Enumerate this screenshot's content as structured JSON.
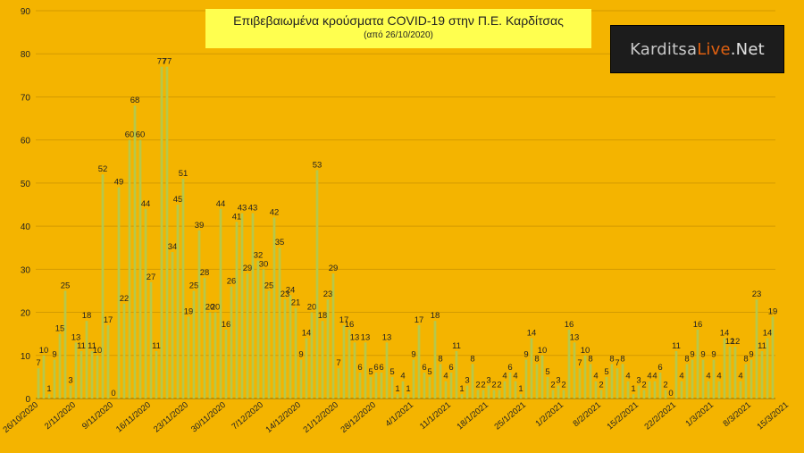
{
  "title": "Επιβεβαιωμένα κρούσματα COVID-19 στην Π.Ε. Καρδίτσας",
  "subtitle": "(από 26/10/2020)",
  "logo": {
    "part1": "Karditsa",
    "part2": "Live",
    "part3": ".Net"
  },
  "colors": {
    "background": "#f4b400",
    "bar": "#b6c84a",
    "title_box": "#ffff4f",
    "gridline": "#d39a00",
    "text": "#222222"
  },
  "chart_data": {
    "type": "bar",
    "x_start_date": "2020-10-26",
    "ylim": [
      0,
      90
    ],
    "y_ticks": [
      0,
      10,
      20,
      30,
      40,
      50,
      60,
      70,
      80,
      90
    ],
    "grid": true,
    "x_tick_labels": [
      "26/10/2020",
      "2/11/2020",
      "9/11/2020",
      "16/11/2020",
      "23/11/2020",
      "30/11/2020",
      "7/12/2020",
      "14/12/2020",
      "21/12/2020",
      "28/12/2020",
      "4/1/2021",
      "11/1/2021",
      "18/1/2021",
      "25/1/2021",
      "1/2/2021",
      "8/2/2021",
      "15/2/2021",
      "22/2/2021",
      "1/3/2021",
      "8/3/2021",
      "15/3/2021"
    ],
    "values": [
      7,
      10,
      1,
      9,
      15,
      25,
      3,
      13,
      11,
      18,
      11,
      10,
      52,
      17,
      0,
      49,
      22,
      60,
      68,
      60,
      44,
      27,
      11,
      77,
      77,
      34,
      45,
      51,
      19,
      25,
      39,
      28,
      20,
      20,
      44,
      16,
      26,
      41,
      43,
      29,
      43,
      32,
      30,
      25,
      42,
      35,
      23,
      24,
      21,
      9,
      14,
      20,
      53,
      18,
      23,
      29,
      7,
      17,
      16,
      13,
      6,
      13,
      5,
      6,
      6,
      13,
      5,
      1,
      4,
      1,
      9,
      17,
      6,
      5,
      18,
      8,
      4,
      6,
      11,
      1,
      3,
      8,
      2,
      2,
      3,
      2,
      2,
      4,
      6,
      4,
      1,
      9,
      14,
      8,
      10,
      5,
      2,
      3,
      2,
      16,
      13,
      7,
      10,
      8,
      4,
      2,
      5,
      8,
      7,
      8,
      4,
      1,
      3,
      2,
      4,
      4,
      6,
      2,
      0,
      11,
      4,
      8,
      9,
      16,
      9,
      4,
      9,
      4,
      14,
      12,
      12,
      4,
      8,
      9,
      23,
      11,
      14,
      19
    ]
  }
}
